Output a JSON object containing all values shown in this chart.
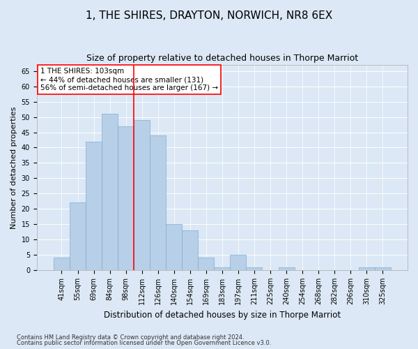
{
  "title": "1, THE SHIRES, DRAYTON, NORWICH, NR8 6EX",
  "subtitle": "Size of property relative to detached houses in Thorpe Marriot",
  "xlabel": "Distribution of detached houses by size in Thorpe Marriot",
  "ylabel": "Number of detached properties",
  "footer_line1": "Contains HM Land Registry data © Crown copyright and database right 2024.",
  "footer_line2": "Contains public sector information licensed under the Open Government Licence v3.0.",
  "categories": [
    "41sqm",
    "55sqm",
    "69sqm",
    "84sqm",
    "98sqm",
    "112sqm",
    "126sqm",
    "140sqm",
    "154sqm",
    "169sqm",
    "183sqm",
    "197sqm",
    "211sqm",
    "225sqm",
    "240sqm",
    "254sqm",
    "268sqm",
    "282sqm",
    "296sqm",
    "310sqm",
    "325sqm"
  ],
  "values": [
    4,
    22,
    42,
    51,
    47,
    49,
    44,
    15,
    13,
    4,
    1,
    5,
    1,
    0,
    1,
    0,
    0,
    0,
    0,
    1,
    1
  ],
  "bar_color": "#b8cfe8",
  "bar_edge_color": "#7aaed4",
  "vline_x": 4.5,
  "vline_color": "red",
  "annotation_text": "1 THE SHIRES: 103sqm\n← 44% of detached houses are smaller (131)\n56% of semi-detached houses are larger (167) →",
  "annotation_box_color": "white",
  "annotation_box_edge_color": "red",
  "ylim": [
    0,
    67
  ],
  "yticks": [
    0,
    5,
    10,
    15,
    20,
    25,
    30,
    35,
    40,
    45,
    50,
    55,
    60,
    65
  ],
  "background_color": "#dce8f5",
  "plot_background_color": "#dce8f5",
  "title_fontsize": 11,
  "subtitle_fontsize": 9,
  "xlabel_fontsize": 8.5,
  "ylabel_fontsize": 8,
  "tick_fontsize": 7,
  "annotation_fontsize": 7.5,
  "footer_fontsize": 6
}
